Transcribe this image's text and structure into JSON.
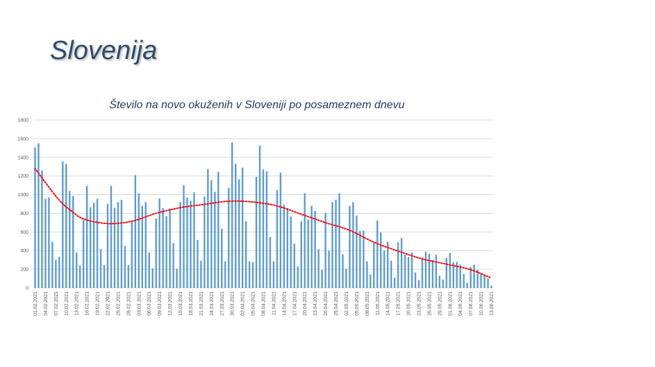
{
  "slide": {
    "title": "Slovenija"
  },
  "chart_data": {
    "type": "bar",
    "title": "Število na novo okuženih v Sloveniji po posameznem dnevu",
    "xlabel": "",
    "ylabel": "",
    "ylim": [
      0,
      1800
    ],
    "yticks": [
      0,
      200,
      400,
      600,
      800,
      1000,
      1200,
      1400,
      1600,
      1800
    ],
    "grid": true,
    "legend": "none",
    "bar_color": "#5b9bd5",
    "trend_color": "#ff0000",
    "xtick_every": 3,
    "categories": [
      "01.02.2021",
      "02.02.2021",
      "03.02.2021",
      "04.02.2021",
      "05.02.2021",
      "06.02.2021",
      "07.02.2021",
      "08.02.2021",
      "09.02.2021",
      "10.02.2021",
      "11.02.2021",
      "12.02.2021",
      "13.02.2021",
      "14.02.2021",
      "15.02.2021",
      "16.02.2021",
      "17.02.2021",
      "18.02.2021",
      "19.02.2021",
      "20.02.2021",
      "21.02.2021",
      "22.02.2021",
      "23.02.2021",
      "24.02.2021",
      "25.02.2021",
      "26.02.2021",
      "27.02.2021",
      "28.02.2021",
      "01.03.2021",
      "02.03.2021",
      "03.03.2021",
      "04.03.2021",
      "05.03.2021",
      "06.03.2021",
      "07.03.2021",
      "08.03.2021",
      "09.03.2021",
      "10.03.2021",
      "11.03.2021",
      "12.03.2021",
      "13.03.2021",
      "14.03.2021",
      "15.03.2021",
      "16.03.2021",
      "17.03.2021",
      "18.03.2021",
      "19.03.2021",
      "20.03.2021",
      "21.03.2021",
      "22.03.2021",
      "23.03.2021",
      "24.03.2021",
      "25.03.2021",
      "26.03.2021",
      "27.03.2021",
      "28.03.2021",
      "29.03.2021",
      "30.03.2021",
      "31.03.2021",
      "01.04.2021",
      "02.04.2021",
      "03.04.2021",
      "04.04.2021",
      "05.04.2021",
      "06.04.2021",
      "07.04.2021",
      "08.04.2021",
      "09.04.2021",
      "10.04.2021",
      "11.04.2021",
      "12.04.2021",
      "13.04.2021",
      "14.04.2021",
      "15.04.2021",
      "16.04.2021",
      "17.04.2021",
      "18.04.2021",
      "19.04.2021",
      "20.04.2021",
      "21.04.2021",
      "22.04.2021",
      "23.04.2021",
      "24.04.2021",
      "25.04.2021",
      "26.04.2021",
      "27.04.2021",
      "28.04.2021",
      "29.04.2021",
      "30.04.2021",
      "01.05.2021",
      "02.05.2021",
      "03.05.2021",
      "04.05.2021",
      "05.05.2021",
      "06.05.2021",
      "07.05.2021",
      "08.05.2021",
      "09.05.2021",
      "10.05.2021",
      "11.05.2021",
      "12.05.2021",
      "13.05.2021",
      "14.05.2021",
      "15.05.2021",
      "16.05.2021",
      "17.05.2021",
      "18.05.2021",
      "19.05.2021",
      "20.05.2021",
      "21.05.2021",
      "22.05.2021",
      "23.05.2021",
      "24.05.2021",
      "25.05.2021",
      "26.05.2021",
      "27.05.2021",
      "28.05.2021",
      "29.05.2021",
      "30.05.2021",
      "31.05.2021",
      "01.06.2021",
      "02.06.2021",
      "03.06.2021",
      "04.06.2021",
      "05.06.2021",
      "06.06.2021",
      "07.06.2021",
      "08.06.2021",
      "09.06.2021",
      "10.06.2021",
      "11.06.2021",
      "12.06.2021",
      "13.06.2021"
    ],
    "values": [
      1505,
      1550,
      1260,
      955,
      970,
      495,
      300,
      335,
      1355,
      1330,
      1040,
      985,
      380,
      240,
      730,
      1095,
      865,
      910,
      955,
      415,
      245,
      900,
      1095,
      860,
      920,
      945,
      450,
      245,
      710,
      1210,
      1015,
      880,
      920,
      380,
      210,
      745,
      960,
      855,
      770,
      850,
      480,
      205,
      920,
      1100,
      970,
      935,
      1025,
      515,
      290,
      980,
      1275,
      1155,
      1030,
      1245,
      635,
      285,
      1070,
      1560,
      1330,
      1165,
      1290,
      715,
      285,
      275,
      1190,
      1525,
      1270,
      1250,
      545,
      285,
      1050,
      1235,
      890,
      855,
      765,
      475,
      230,
      715,
      1015,
      730,
      880,
      825,
      415,
      195,
      805,
      400,
      920,
      945,
      1015,
      360,
      205,
      880,
      920,
      775,
      610,
      615,
      285,
      145,
      480,
      725,
      595,
      400,
      495,
      290,
      110,
      490,
      535,
      355,
      330,
      380,
      165,
      85,
      325,
      390,
      365,
      300,
      355,
      130,
      90,
      320,
      375,
      275,
      280,
      250,
      150,
      55,
      225,
      250,
      195,
      160,
      145,
      100,
      25
    ],
    "trendline": {
      "type": "polynomial",
      "style": "dotted",
      "points": [
        {
          "x": "01.02.2021",
          "y": 1280
        },
        {
          "x": "04.02.2021",
          "y": 1130
        },
        {
          "x": "08.02.2021",
          "y": 940
        },
        {
          "x": "11.02.2021",
          "y": 840
        },
        {
          "x": "15.02.2021",
          "y": 740
        },
        {
          "x": "22.02.2021",
          "y": 690
        },
        {
          "x": "01.03.2021",
          "y": 715
        },
        {
          "x": "08.03.2021",
          "y": 800
        },
        {
          "x": "15.03.2021",
          "y": 860
        },
        {
          "x": "22.03.2021",
          "y": 896
        },
        {
          "x": "29.03.2021",
          "y": 929
        },
        {
          "x": "05.04.2021",
          "y": 921
        },
        {
          "x": "12.04.2021",
          "y": 879
        },
        {
          "x": "19.04.2021",
          "y": 790
        },
        {
          "x": "26.04.2021",
          "y": 700
        },
        {
          "x": "03.05.2021",
          "y": 617
        },
        {
          "x": "10.05.2021",
          "y": 490
        },
        {
          "x": "17.05.2021",
          "y": 395
        },
        {
          "x": "24.05.2021",
          "y": 311
        },
        {
          "x": "31.05.2021",
          "y": 255
        },
        {
          "x": "07.06.2021",
          "y": 195
        },
        {
          "x": "13.06.2021",
          "y": 105
        }
      ]
    }
  }
}
